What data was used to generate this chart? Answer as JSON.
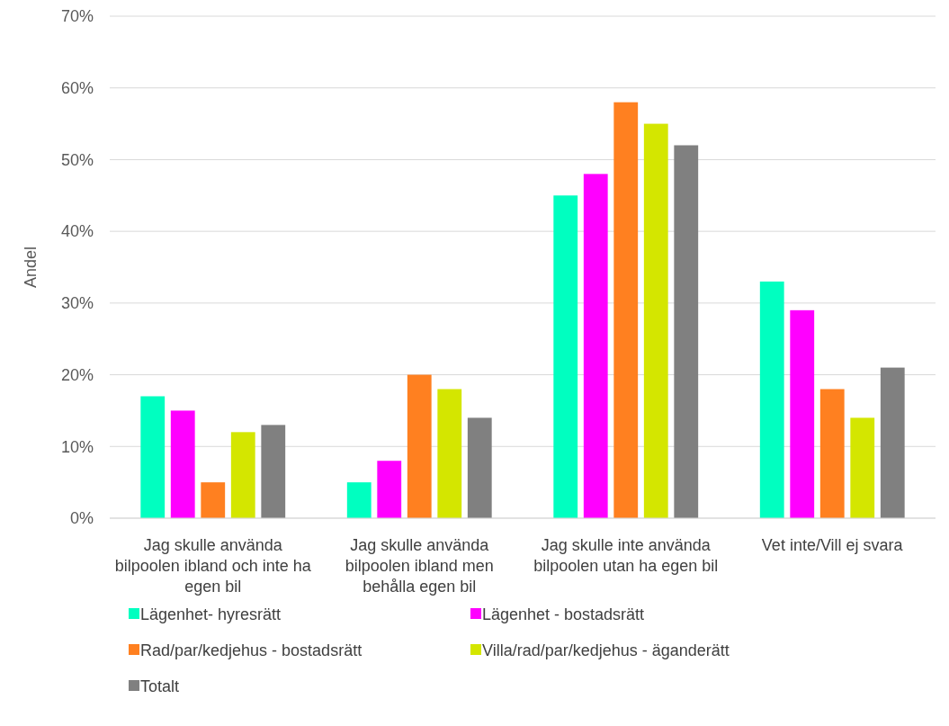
{
  "chart_data": {
    "type": "bar",
    "ylabel": "Andel",
    "categories": [
      "Jag skulle använda bilpoolen ibland och inte ha egen bil",
      "Jag skulle använda bilpoolen ibland men behålla egen bil",
      "Jag skulle inte använda bilpoolen utan ha egen bil",
      "Vet inte/Vill ej svara"
    ],
    "series": [
      {
        "name": "Lägenhet- hyresrätt",
        "color": "#00ffc0",
        "values": [
          17,
          5,
          45,
          33
        ]
      },
      {
        "name": "Lägenhet - bostadsrätt",
        "color": "#ff00ff",
        "values": [
          15,
          8,
          48,
          29
        ]
      },
      {
        "name": "Rad/par/kedjehus - bostadsrätt",
        "color": "#ff8020",
        "values": [
          5,
          20,
          58,
          18
        ]
      },
      {
        "name": "Villa/rad/par/kedjehus - äganderätt",
        "color": "#d4e600",
        "values": [
          12,
          18,
          55,
          14
        ]
      },
      {
        "name": "Totalt",
        "color": "#808080",
        "values": [
          13,
          14,
          52,
          21
        ]
      }
    ],
    "ylim": [
      0,
      70
    ],
    "yticks": [
      {
        "value": 0,
        "label": "0%"
      },
      {
        "value": 10,
        "label": "10%"
      },
      {
        "value": 20,
        "label": "20%"
      },
      {
        "value": 30,
        "label": "30%"
      },
      {
        "value": 40,
        "label": "40%"
      },
      {
        "value": 50,
        "label": "50%"
      },
      {
        "value": 60,
        "label": "60%"
      },
      {
        "value": 70,
        "label": "70%"
      }
    ],
    "grid": "y",
    "legend": "bottom"
  }
}
